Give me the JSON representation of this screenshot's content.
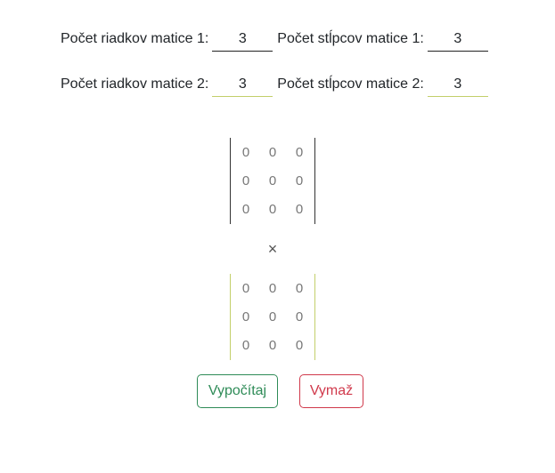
{
  "dimensions": {
    "row1": {
      "rows_label": "Počet riadkov matice 1:",
      "rows_value": "3",
      "cols_label": "Počet stĺpcov matice 1:",
      "cols_value": "3"
    },
    "row2": {
      "rows_label": "Počet riadkov matice 2:",
      "rows_value": "3",
      "cols_label": "Počet stĺpcov matice 2:",
      "cols_value": "3"
    }
  },
  "matrix1": [
    [
      "0",
      "0",
      "0"
    ],
    [
      "0",
      "0",
      "0"
    ],
    [
      "0",
      "0",
      "0"
    ]
  ],
  "matrix2": [
    [
      "0",
      "0",
      "0"
    ],
    [
      "0",
      "0",
      "0"
    ],
    [
      "0",
      "0",
      "0"
    ]
  ],
  "operator": "×",
  "buttons": {
    "calculate": "Vypočítaj",
    "clear": "Vymaž"
  },
  "colors": {
    "matrix1_border": "#333333",
    "matrix2_border": "#c3cf6a",
    "calculate": "#2e8b57",
    "clear": "#d0394b"
  }
}
